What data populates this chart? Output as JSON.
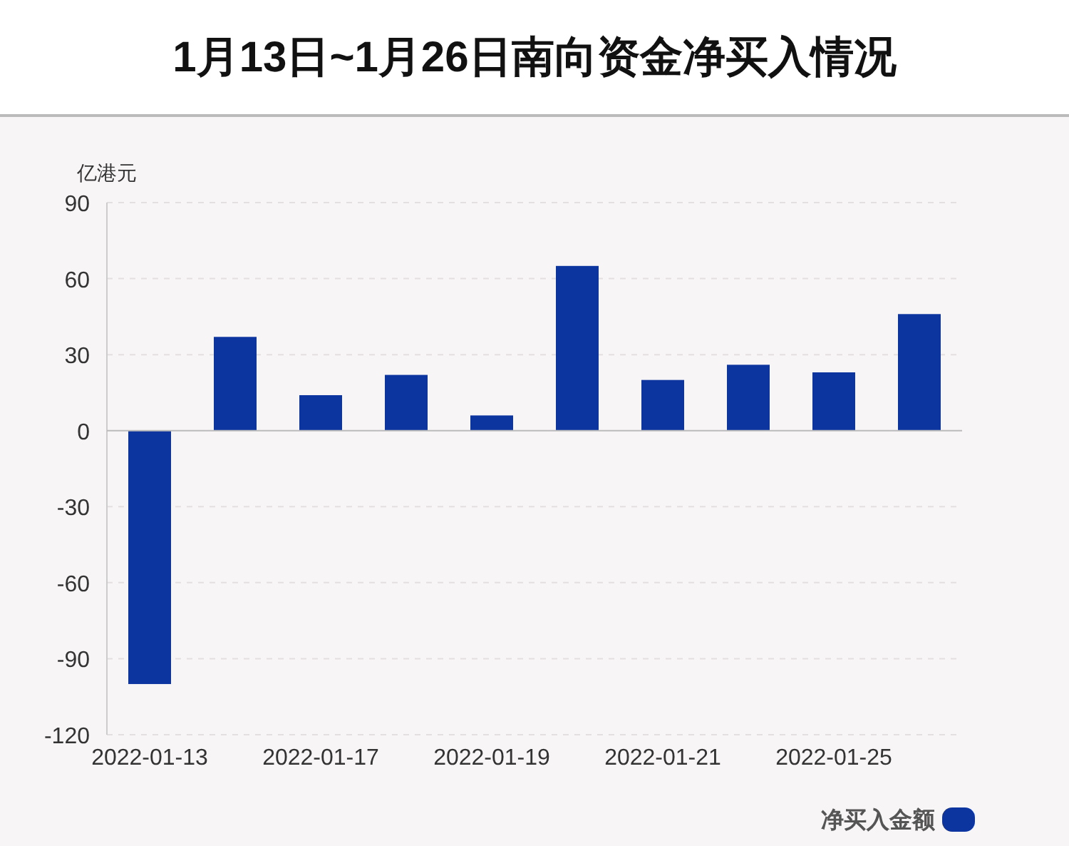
{
  "chart_data": {
    "type": "bar",
    "title": "1月13日~1月26日南向资金净买入情况",
    "ylabel": "亿港元",
    "categories": [
      "2022-01-13",
      null,
      "2022-01-17",
      null,
      "2022-01-19",
      null,
      "2022-01-21",
      null,
      "2022-01-25",
      null
    ],
    "series": [
      {
        "name": "净买入金额",
        "color": "#0d35a0",
        "values": [
          -100,
          37,
          14,
          22,
          6,
          65,
          20,
          26,
          23,
          46
        ]
      }
    ],
    "ylim": [
      -120,
      90
    ],
    "yticks": [
      -120,
      -90,
      -60,
      -30,
      0,
      30,
      60,
      90
    ],
    "grid": "y",
    "legend": "bottom right"
  }
}
